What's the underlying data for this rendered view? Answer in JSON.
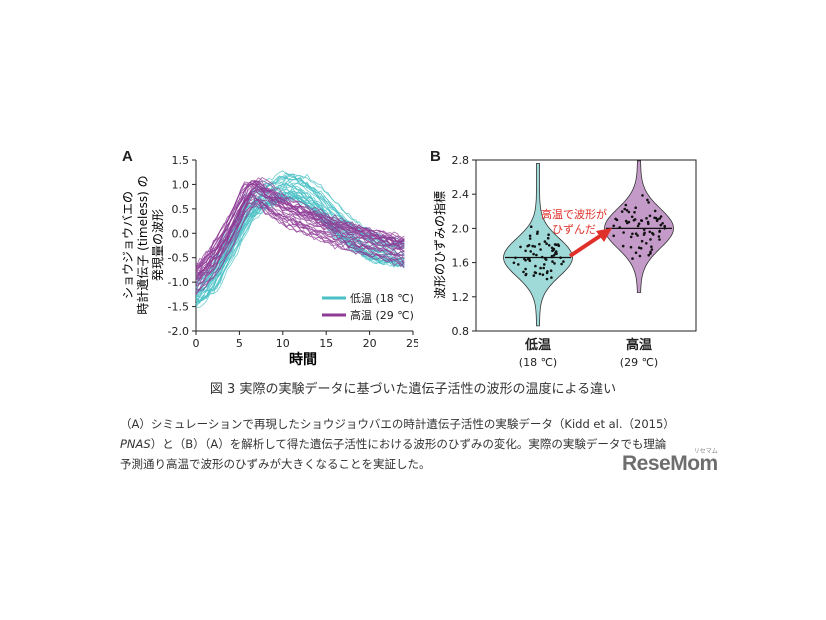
{
  "panels": {
    "a_label": "A",
    "b_label": "B"
  },
  "chart_data": [
    {
      "type": "line",
      "xlabel": "時間",
      "ylabel_line1": "ショウジョウバエの",
      "ylabel_line2": "時計遺伝子 (timeless) の",
      "ylabel_line3": "発現量の波形",
      "xlim": [
        0,
        25
      ],
      "ylim": [
        -2.0,
        1.5
      ],
      "xticks": [
        "0",
        "5",
        "10",
        "15",
        "20",
        "25"
      ],
      "yticks": [
        "1.5",
        "1.0",
        "0.5",
        "0.0",
        "-0.5",
        "-1.0",
        "-1.5",
        "-2.0"
      ],
      "series": [
        {
          "name": "低温 (18 ℃)",
          "color": "#48c0c6",
          "x": [
            0,
            2,
            4,
            6,
            8,
            10,
            11,
            12,
            14,
            16,
            18,
            20,
            22,
            24
          ],
          "y": [
            -1.2,
            -0.9,
            -0.2,
            0.5,
            0.8,
            0.95,
            1.0,
            0.95,
            0.7,
            0.3,
            0.0,
            -0.25,
            -0.35,
            -0.4
          ]
        },
        {
          "name": "高温 (29 ℃)",
          "color": "#8e3b96",
          "x": [
            0,
            2,
            4,
            6,
            7,
            8,
            10,
            12,
            14,
            16,
            18,
            20,
            22,
            24
          ],
          "y": [
            -1.0,
            -0.6,
            0.0,
            0.75,
            0.85,
            0.7,
            0.45,
            0.3,
            0.15,
            0.0,
            -0.1,
            -0.2,
            -0.3,
            -0.4
          ]
        }
      ],
      "legend_position": "bottom-right"
    },
    {
      "type": "violin",
      "ylabel": "波形のひずみの指標",
      "ylim": [
        0.8,
        2.8
      ],
      "yticks": [
        "2.8",
        "2.4",
        "2.0",
        "1.6",
        "1.2",
        "0.8"
      ],
      "categories": [
        {
          "name": "低温",
          "sub": "(18 ℃)",
          "color": "#9fd9d8",
          "median": 1.66,
          "min": 0.86,
          "max": 2.76
        },
        {
          "name": "高温",
          "sub": "(29 ℃)",
          "color": "#c49bc8",
          "median": 2.0,
          "min": 1.25,
          "max": 2.79
        }
      ],
      "annotation": {
        "line1": "高温で波形が",
        "line2": "ひずんだ",
        "color": "#e0302a"
      }
    }
  ],
  "caption": {
    "title": "図 3  実際の実験データに基づいた遺伝子活性の波形の温度による違い",
    "line1": "（A）シミュレーションで再現したショウジョウバエの時計遺伝子活性の実験データ（Kidd et al.（2015）",
    "line2_italic": "PNAS",
    "line2_rest": "）と（B）（A）を解析して得た遺伝子活性における波形のひずみの変化。実際の実験データでも理論",
    "line3": "予測通り高温で波形のひずみが大きくなることを実証した。"
  },
  "logo": {
    "text": "ReseMom",
    "sub": "リセマム"
  }
}
